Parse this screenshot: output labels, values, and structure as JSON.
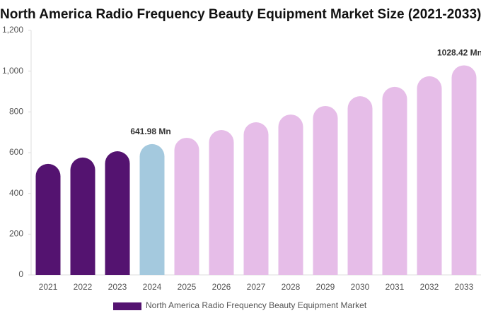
{
  "chart_data": {
    "type": "bar",
    "title": "North America Radio Frequency Beauty Equipment Market Size (2021-2033)",
    "categories": [
      "2021",
      "2022",
      "2023",
      "2024",
      "2025",
      "2026",
      "2027",
      "2028",
      "2029",
      "2030",
      "2031",
      "2032",
      "2033"
    ],
    "series": [
      {
        "name": "North America Radio Frequency Beauty Equipment Market",
        "color": "#541370",
        "values": [
          545,
          576,
          607,
          641.98,
          673,
          711,
          749,
          787,
          829,
          877,
          923,
          975,
          1028.42
        ],
        "value_labels": [
          null,
          null,
          null,
          "641.98 Mn",
          null,
          null,
          null,
          null,
          null,
          null,
          null,
          null,
          "1028.42 Mn"
        ],
        "colors": [
          "#541370",
          "#541370",
          "#541370",
          "#a4c9de",
          "#e6bde8",
          "#e6bde8",
          "#e6bde8",
          "#e6bde8",
          "#e6bde8",
          "#e6bde8",
          "#e6bde8",
          "#e6bde8",
          "#e6bde8"
        ]
      }
    ],
    "ylim": [
      0,
      1200
    ],
    "yticks": [
      0,
      200,
      400,
      600,
      800,
      {
        "value": 1000,
        "label": "1,000"
      },
      {
        "value": 1200,
        "label": "1,200"
      }
    ],
    "grid": false
  }
}
